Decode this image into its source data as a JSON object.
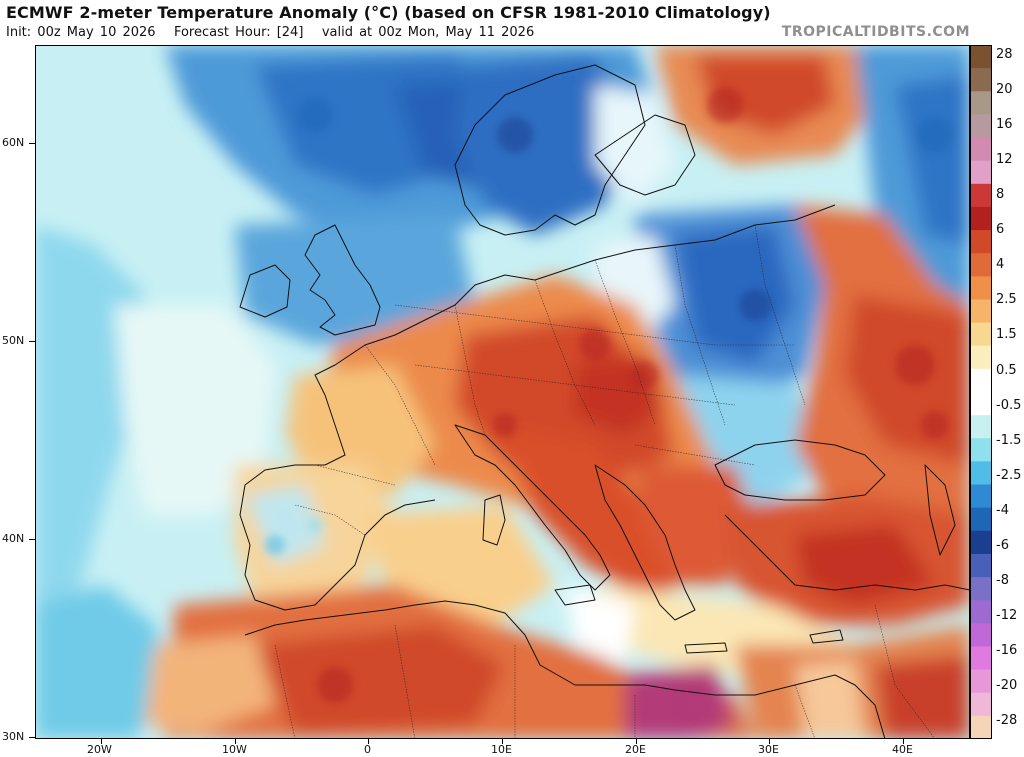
{
  "header": {
    "title": "ECMWF 2-meter Temperature Anomaly (°C) (based on CFSR 1981-2010 Climatology)",
    "init": "Init: 00z May 10 2026",
    "forecast": "Forecast Hour: [24]",
    "valid": "valid at 00z Mon, May 11 2026",
    "brand": "TROPICALTIDBITS.COM"
  },
  "axes": {
    "lat_labels": [
      "60N",
      "50N",
      "40N",
      "30N"
    ],
    "lon_labels": [
      "20W",
      "10W",
      "0",
      "10E",
      "20E",
      "30E",
      "40E"
    ]
  },
  "colorbar": {
    "labels": [
      "28",
      "20",
      "16",
      "12",
      "8",
      "6",
      "4",
      "2.5",
      "1.5",
      "0.5",
      "-0.5",
      "-1.5",
      "-2.5",
      "-4",
      "-6",
      "-8",
      "-12",
      "-16",
      "-20",
      "-28"
    ],
    "colors": [
      "#7a5230",
      "#8c6a50",
      "#a89888",
      "#b79aa0",
      "#d28ab0",
      "#e0a0c8",
      "#cc3838",
      "#b32020",
      "#d04a2a",
      "#e06a38",
      "#f09048",
      "#f5b468",
      "#f8d890",
      "#fbeebe",
      "#ffffff",
      "#ffffff",
      "#c8f0f0",
      "#8ee0ec",
      "#50bce8",
      "#2e8ad2",
      "#1e66b6",
      "#1a3f90",
      "#4860b8",
      "#7a70c8",
      "#9c6ad0",
      "#c068d8",
      "#e07ae0",
      "#e898d8",
      "#f0b8d8",
      "#f5d4b8"
    ]
  },
  "map_colors": {
    "ocean_north_dark": "#2860b8",
    "ocean_north": "#4e9ad8",
    "ocean_cool": "#8ed8ee",
    "ocean_light": "#c8f0f4",
    "neutral": "#ffffff",
    "warm_light": "#fbe6b0",
    "warm": "#f2a45e",
    "hot": "#dd5a35",
    "hotter": "#c33224",
    "extreme": "#b33a78",
    "border": "#111111"
  }
}
